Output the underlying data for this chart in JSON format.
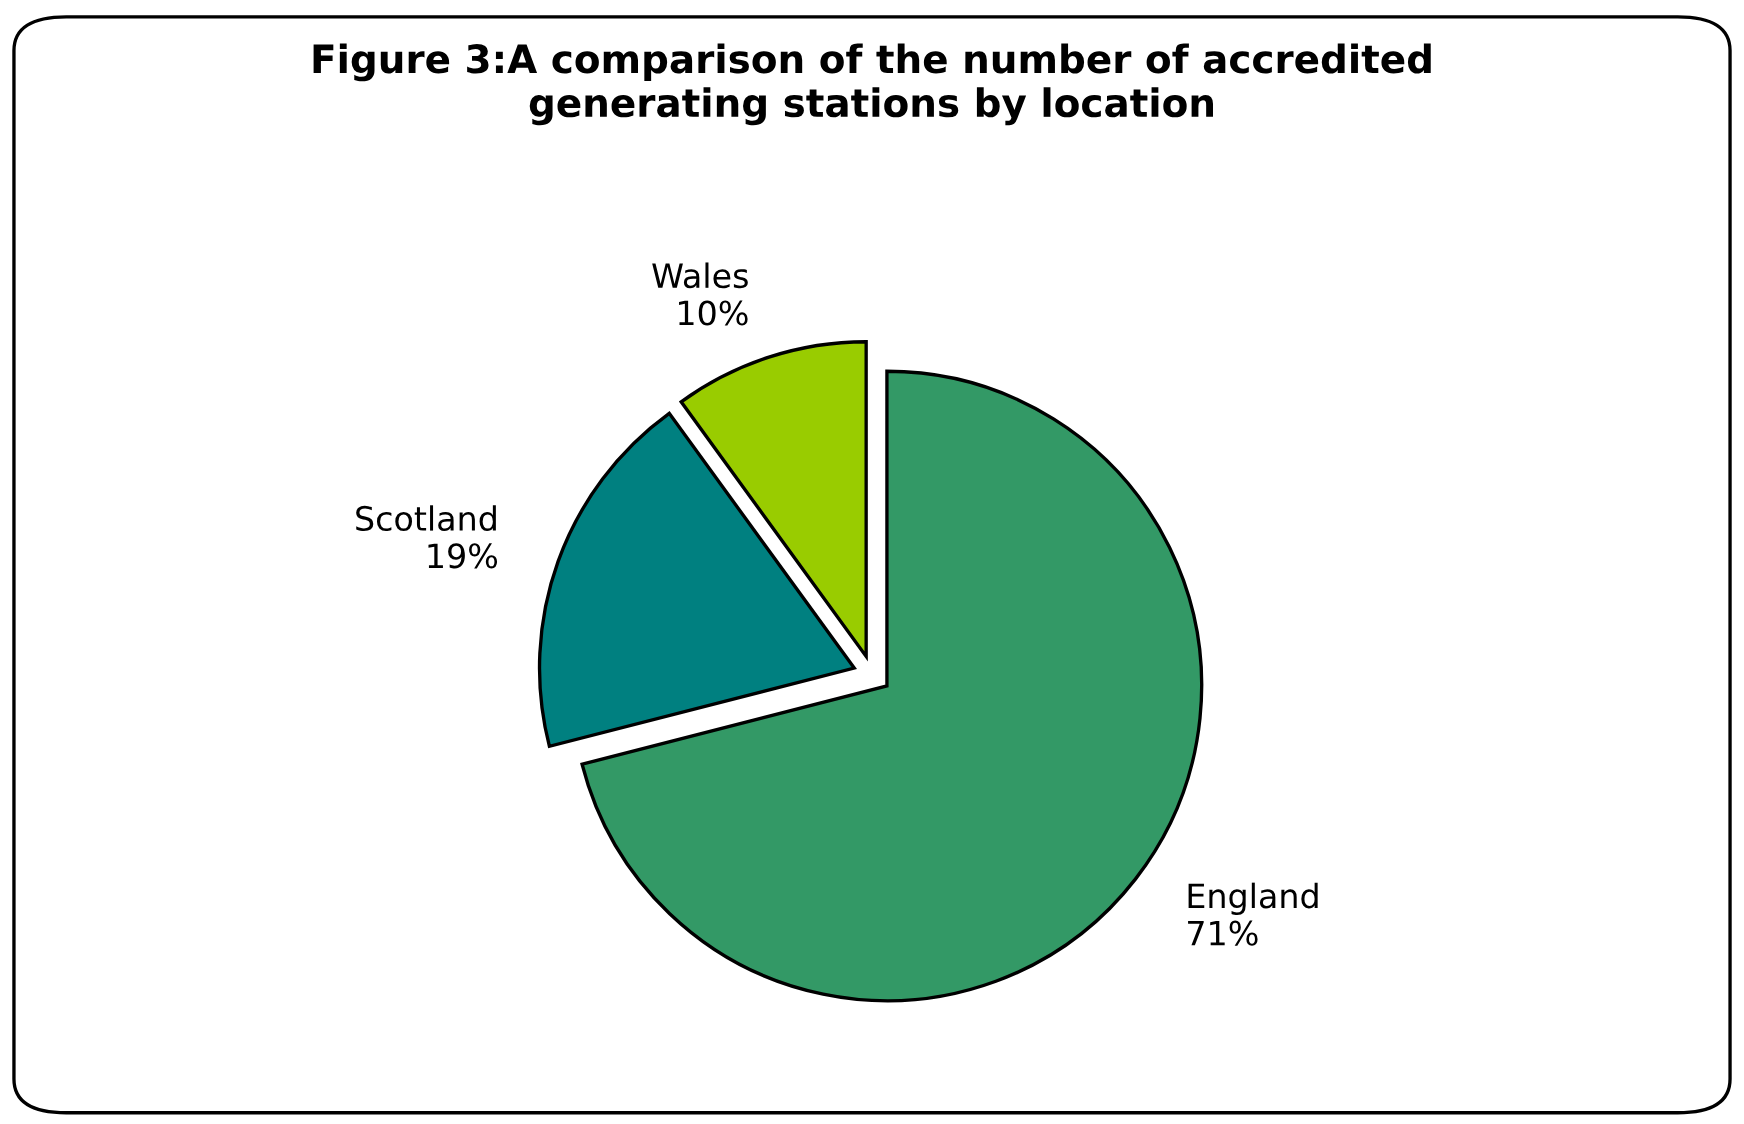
{
  "chart_data": {
    "type": "pie",
    "title": "Figure 3:A comparison of the number of accredited\ngenerating stations by location",
    "categories": [
      "England",
      "Scotland",
      "Wales"
    ],
    "values": [
      71,
      19,
      10
    ],
    "value_labels": [
      "71%",
      "19%",
      "10%"
    ],
    "colors": [
      "#339966",
      "#008080",
      "#99cc00"
    ],
    "legend": false
  }
}
